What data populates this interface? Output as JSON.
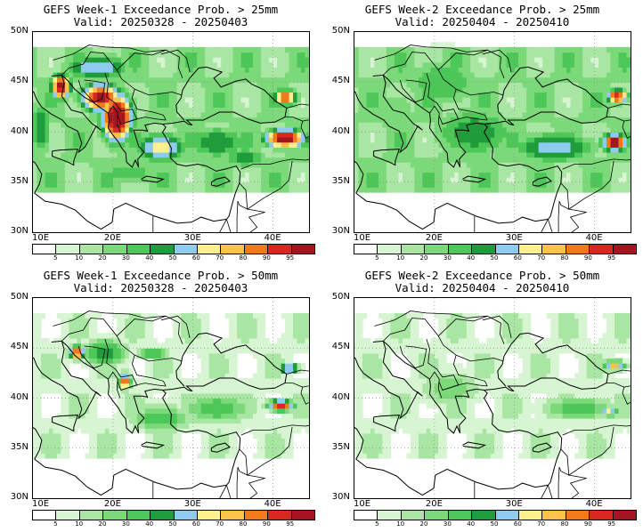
{
  "panels": [
    {
      "id": "p1",
      "title": "GEFS Week-1 Exceedance Prob. > 25mm",
      "valid": "Valid: 20250328 - 20250403",
      "intensity": 1.0
    },
    {
      "id": "p2",
      "title": "GEFS Week-2 Exceedance Prob. > 25mm",
      "valid": "Valid: 20250404 - 20250410",
      "intensity": 0.65
    },
    {
      "id": "p3",
      "title": "GEFS Week-1 Exceedance Prob. > 50mm",
      "valid": "Valid: 20250328 - 20250403",
      "intensity": 0.45
    },
    {
      "id": "p4",
      "title": "GEFS Week-2 Exceedance Prob. > 50mm",
      "valid": "Valid: 20250404 - 20250410",
      "intensity": 0.25
    }
  ],
  "axes": {
    "lat_labels": [
      "50N",
      "45N",
      "40N",
      "35N",
      "30N"
    ],
    "lon_labels": [
      "10E",
      "20E",
      "30E",
      "40E"
    ]
  },
  "colorbar": {
    "labels": [
      "5",
      "10",
      "20",
      "30",
      "40",
      "50",
      "60",
      "70",
      "80",
      "90",
      "95"
    ],
    "colors": [
      "#ffffff",
      "#d8f5d3",
      "#a9e6a3",
      "#7cd97a",
      "#4dc757",
      "#1f9c3b",
      "#8ecbee",
      "#fdf08f",
      "#fdc24c",
      "#f07a1c",
      "#d9281f",
      "#a31621"
    ]
  }
}
